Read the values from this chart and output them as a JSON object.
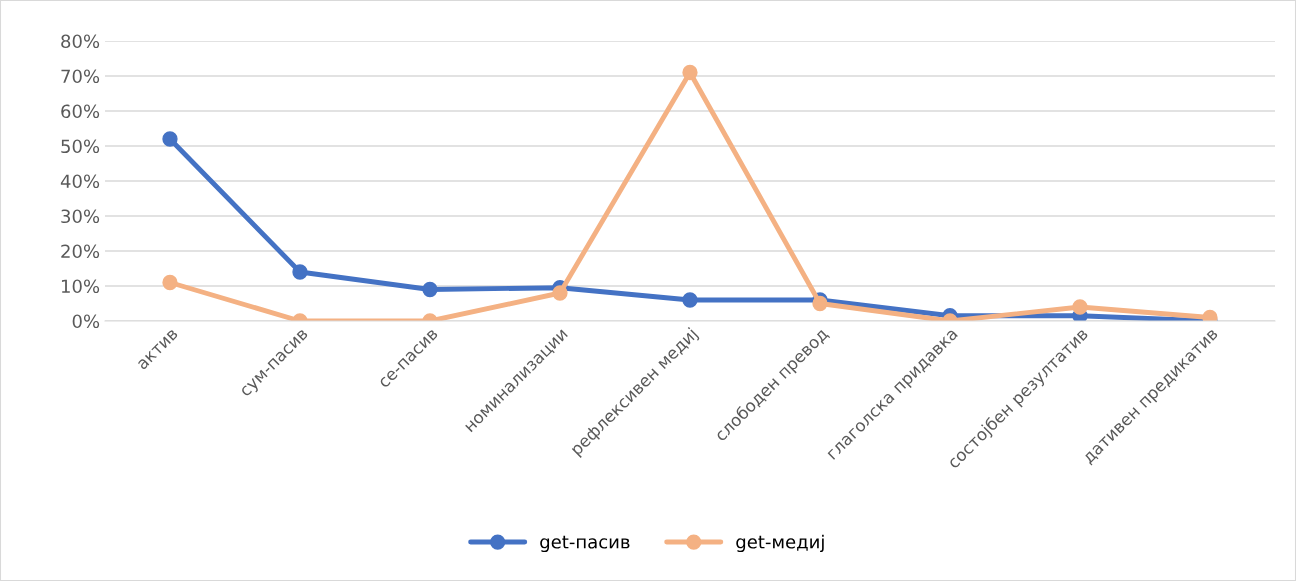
{
  "chart_data": {
    "type": "line",
    "categories": [
      "актив",
      "сум-пасив",
      "се-пасив",
      "номинализации",
      "рефлексивен медиј",
      "слободен превод",
      "глаголска придавка",
      "состојбен резултатив",
      "дативен предикатив"
    ],
    "series": [
      {
        "name": "get-пасив",
        "color": "#4472c4",
        "values": [
          52,
          14,
          9,
          9.5,
          6,
          6,
          1.5,
          1.5,
          0
        ]
      },
      {
        "name": "get-медиј",
        "color": "#f4b183",
        "values": [
          11,
          0,
          0,
          8,
          71,
          5,
          0,
          4,
          1
        ]
      }
    ],
    "ylim": [
      0,
      80
    ],
    "yticks": [
      {
        "value": 0,
        "label": "0%"
      },
      {
        "value": 10,
        "label": "10%"
      },
      {
        "value": 20,
        "label": "20%"
      },
      {
        "value": 30,
        "label": "30%"
      },
      {
        "value": 40,
        "label": "40%"
      },
      {
        "value": 50,
        "label": "50%"
      },
      {
        "value": 60,
        "label": "60%"
      },
      {
        "value": 70,
        "label": "70%"
      },
      {
        "value": 80,
        "label": "80%"
      }
    ],
    "grid": "y",
    "legend": "bottom",
    "marker": "circle",
    "line_style": "solid"
  }
}
